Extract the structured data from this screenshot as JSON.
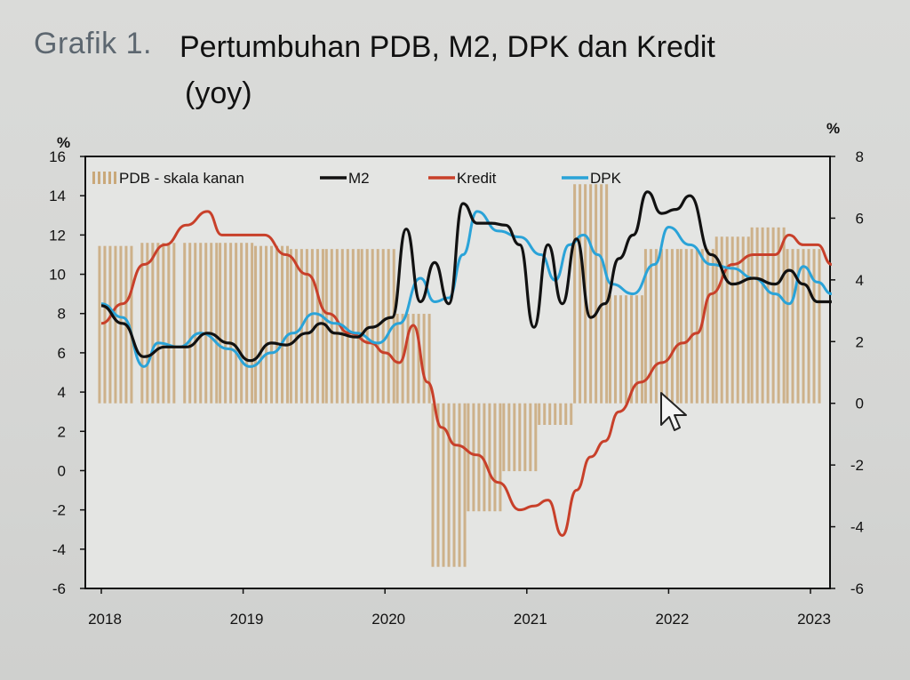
{
  "header": {
    "prefix": "Grafik 1.",
    "title": "Pertumbuhan PDB, M2, DPK dan Kredit",
    "subtitle": "(yoy)"
  },
  "colors": {
    "pdb": "#c9a87a",
    "m2": "#111111",
    "kredit": "#c8402a",
    "dpk": "#2aa3d8",
    "axis": "#111111"
  },
  "chart_data": {
    "type": "line",
    "title": "Pertumbuhan PDB, M2, DPK dan Kredit (yoy)",
    "xlabel": "",
    "ylabel_left": "%",
    "ylabel_right": "%",
    "ylim_left": [
      -6,
      16
    ],
    "ylim_right": [
      -6,
      8
    ],
    "xlim": [
      2018.0,
      2023.2
    ],
    "yticks_left": [
      "16",
      "14",
      "12",
      "10",
      "8",
      "6",
      "4",
      "2",
      "0",
      "-2",
      "-4",
      "-6"
    ],
    "yticks_right": [
      "8",
      "6",
      "4",
      "2",
      "0",
      "-2",
      "-4",
      "-6"
    ],
    "xticks": [
      "2018",
      "2019",
      "2020",
      "2021",
      "2022",
      "2023"
    ],
    "legend": [
      "PDB - skala kanan",
      "M2",
      "Kredit",
      "DPK"
    ],
    "legend_position": "top",
    "grid": false,
    "series": [
      {
        "name": "PDB - skala kanan",
        "type": "bar",
        "axis": "right",
        "x": [
          2018.1,
          2018.4,
          2018.7,
          2018.95,
          2019.2,
          2019.45,
          2019.7,
          2019.95,
          2020.2,
          2020.45,
          2020.7,
          2020.95,
          2021.2,
          2021.45,
          2021.7,
          2021.95,
          2022.2,
          2022.45,
          2022.7,
          2022.95
        ],
        "values": [
          5.1,
          5.2,
          5.2,
          5.2,
          5.1,
          5.0,
          5.0,
          5.0,
          2.9,
          -5.3,
          -3.5,
          -2.2,
          -0.7,
          7.1,
          3.5,
          5.0,
          5.0,
          5.4,
          5.7,
          5.0
        ]
      },
      {
        "name": "M2",
        "type": "line",
        "axis": "left",
        "x": [
          2018.0,
          2018.15,
          2018.3,
          2018.45,
          2018.6,
          2018.75,
          2018.9,
          2019.05,
          2019.2,
          2019.3,
          2019.45,
          2019.55,
          2019.65,
          2019.8,
          2019.9,
          2020.05,
          2020.15,
          2020.25,
          2020.35,
          2020.45,
          2020.55,
          2020.65,
          2020.75,
          2020.85,
          2020.95,
          2021.05,
          2021.15,
          2021.25,
          2021.35,
          2021.45,
          2021.55,
          2021.65,
          2021.75,
          2021.85,
          2021.95,
          2022.05,
          2022.15,
          2022.3,
          2022.45,
          2022.6,
          2022.75,
          2022.85,
          2022.95,
          2023.05,
          2023.15
        ],
        "values": [
          8.4,
          7.5,
          5.8,
          6.3,
          6.3,
          7.0,
          6.5,
          5.6,
          6.5,
          6.4,
          7.0,
          7.5,
          7.0,
          6.8,
          7.3,
          7.8,
          12.3,
          8.6,
          10.6,
          8.5,
          13.6,
          12.6,
          12.6,
          12.5,
          11.5,
          7.3,
          11.5,
          8.5,
          11.8,
          7.8,
          8.5,
          10.8,
          12.0,
          14.2,
          13.1,
          13.3,
          14.0,
          11.0,
          9.5,
          9.8,
          9.5,
          10.2,
          9.5,
          8.6,
          8.6
        ]
      },
      {
        "name": "Kredit",
        "type": "line",
        "axis": "left",
        "x": [
          2018.0,
          2018.15,
          2018.3,
          2018.45,
          2018.6,
          2018.75,
          2018.85,
          2019.0,
          2019.15,
          2019.3,
          2019.45,
          2019.6,
          2019.75,
          2019.9,
          2020.0,
          2020.1,
          2020.2,
          2020.3,
          2020.4,
          2020.5,
          2020.65,
          2020.8,
          2020.95,
          2021.05,
          2021.15,
          2021.25,
          2021.35,
          2021.45,
          2021.55,
          2021.65,
          2021.8,
          2021.95,
          2022.1,
          2022.2,
          2022.3,
          2022.45,
          2022.6,
          2022.75,
          2022.85,
          2022.95,
          2023.05,
          2023.15
        ],
        "values": [
          7.5,
          8.5,
          10.5,
          11.5,
          12.5,
          13.2,
          12.0,
          12.0,
          12.0,
          11.0,
          10.0,
          8.0,
          7.0,
          6.5,
          6.0,
          5.5,
          7.4,
          4.5,
          2.2,
          1.3,
          0.8,
          -0.6,
          -2.0,
          -1.8,
          -1.5,
          -3.3,
          -1.0,
          0.7,
          1.5,
          3.0,
          4.5,
          5.5,
          6.5,
          7.0,
          9.0,
          10.5,
          11.0,
          11.0,
          12.0,
          11.5,
          11.5,
          10.5
        ]
      },
      {
        "name": "DPK",
        "type": "line",
        "axis": "left",
        "x": [
          2018.0,
          2018.15,
          2018.3,
          2018.4,
          2018.55,
          2018.7,
          2018.9,
          2019.05,
          2019.2,
          2019.35,
          2019.5,
          2019.65,
          2019.8,
          2019.95,
          2020.1,
          2020.25,
          2020.35,
          2020.45,
          2020.55,
          2020.65,
          2020.8,
          2020.95,
          2021.1,
          2021.2,
          2021.3,
          2021.4,
          2021.5,
          2021.6,
          2021.75,
          2021.9,
          2022.0,
          2022.15,
          2022.3,
          2022.45,
          2022.6,
          2022.75,
          2022.85,
          2022.95,
          2023.05,
          2023.15
        ],
        "values": [
          8.5,
          7.8,
          5.3,
          6.5,
          6.3,
          7.0,
          6.2,
          5.3,
          6.0,
          7.0,
          8.0,
          7.5,
          7.0,
          6.5,
          7.5,
          9.8,
          8.6,
          8.8,
          11.0,
          13.2,
          12.2,
          11.9,
          11.0,
          9.7,
          11.5,
          12.0,
          11.0,
          9.5,
          9.0,
          10.5,
          12.4,
          11.5,
          10.5,
          10.3,
          9.8,
          9.0,
          8.5,
          10.4,
          9.6,
          9.0
        ]
      }
    ]
  }
}
